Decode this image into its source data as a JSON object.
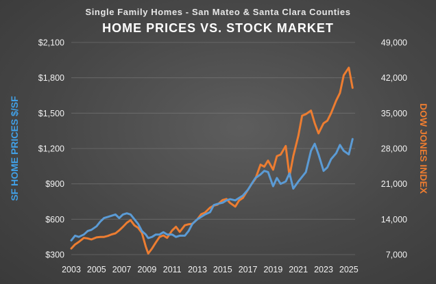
{
  "chart_data": {
    "type": "line",
    "subtitle": "Single Family Homes - San Mateo & Santa Clara  Counties",
    "title": "HOME PRICES VS. STOCK MARKET",
    "ylabel_left": "SF HOME PRICES $/SF",
    "ylabel_right": "DOW JONES INDEX",
    "xlim": [
      2003,
      2025.5
    ],
    "ylim_left": [
      300,
      2100
    ],
    "ylim_right": [
      7000,
      49000
    ],
    "grid": true,
    "x_ticks": [
      "2003",
      "2005",
      "2007",
      "2009",
      "2011",
      "2013",
      "2015",
      "2017",
      "2019",
      "2021",
      "2023",
      "2025"
    ],
    "y_ticks_left": [
      "$300",
      "$600",
      "$900",
      "$1,200",
      "$1,500",
      "$1,800",
      "$2,100"
    ],
    "y_ticks_right": [
      "7,000",
      "14,000",
      "21,000",
      "28,000",
      "35,000",
      "42,000",
      "49,000"
    ],
    "colors": {
      "left_series": "#5b9bd5",
      "right_series": "#ed7d31",
      "left_label": "#41a0e6",
      "right_label": "#ed7d31"
    },
    "series": [
      {
        "axis": "left",
        "x": [
          2003.0,
          2003.3,
          2003.6,
          2004.0,
          2004.3,
          2004.6,
          2005.0,
          2005.3,
          2005.6,
          2005.9,
          2006.2,
          2006.5,
          2006.8,
          2007.1,
          2007.4,
          2007.7,
          2008.0,
          2008.3,
          2008.6,
          2008.9,
          2009.1,
          2009.4,
          2009.7,
          2010.0,
          2010.3,
          2010.6,
          2011.0,
          2011.3,
          2011.6,
          2012.0,
          2012.3,
          2012.6,
          2013.0,
          2013.3,
          2013.6,
          2014.0,
          2014.3,
          2014.6,
          2015.0,
          2015.3,
          2015.6,
          2016.0,
          2016.3,
          2016.6,
          2017.0,
          2017.3,
          2017.6,
          2018.0,
          2018.3,
          2018.6,
          2019.0,
          2019.3,
          2019.6,
          2020.0,
          2020.3,
          2020.6,
          2021.0,
          2021.3,
          2021.6,
          2022.0,
          2022.3,
          2022.6,
          2023.0,
          2023.3,
          2023.6,
          2024.0,
          2024.3,
          2024.6,
          2025.0,
          2025.3
        ],
        "values": [
          420,
          460,
          450,
          470,
          500,
          510,
          540,
          580,
          610,
          620,
          630,
          640,
          610,
          640,
          650,
          640,
          600,
          560,
          500,
          470,
          440,
          450,
          470,
          470,
          490,
          470,
          470,
          450,
          460,
          460,
          500,
          560,
          600,
          620,
          640,
          660,
          720,
          730,
          740,
          760,
          770,
          760,
          780,
          800,
          850,
          900,
          950,
          980,
          1010,
          1000,
          880,
          950,
          900,
          920,
          990,
          860,
          920,
          960,
          1000,
          1180,
          1240,
          1150,
          1010,
          1040,
          1110,
          1160,
          1230,
          1180,
          1150,
          1280
        ]
      },
      {
        "axis": "right",
        "x": [
          2003.0,
          2003.3,
          2003.6,
          2004.0,
          2004.3,
          2004.6,
          2005.0,
          2005.3,
          2005.6,
          2005.9,
          2006.2,
          2006.5,
          2006.8,
          2007.1,
          2007.4,
          2007.7,
          2008.0,
          2008.3,
          2008.6,
          2008.9,
          2009.1,
          2009.4,
          2009.7,
          2010.0,
          2010.3,
          2010.6,
          2011.0,
          2011.3,
          2011.6,
          2012.0,
          2012.3,
          2012.6,
          2013.0,
          2013.3,
          2013.6,
          2014.0,
          2014.3,
          2014.6,
          2015.0,
          2015.3,
          2015.6,
          2016.0,
          2016.3,
          2016.6,
          2017.0,
          2017.3,
          2017.6,
          2018.0,
          2018.3,
          2018.6,
          2019.0,
          2019.3,
          2019.6,
          2020.0,
          2020.3,
          2020.6,
          2021.0,
          2021.3,
          2021.6,
          2022.0,
          2022.3,
          2022.6,
          2023.0,
          2023.3,
          2023.6,
          2024.0,
          2024.3,
          2024.6,
          2025.0,
          2025.3
        ],
        "values": [
          8200,
          9000,
          9500,
          10300,
          10200,
          10000,
          10400,
          10500,
          10500,
          10700,
          11000,
          11200,
          11800,
          12500,
          13300,
          13800,
          12800,
          12300,
          11300,
          8600,
          7200,
          8200,
          9400,
          10500,
          10800,
          10300,
          11800,
          12500,
          11500,
          12800,
          13000,
          13100,
          14000,
          15000,
          15300,
          16300,
          16700,
          16900,
          17800,
          18000,
          17200,
          16500,
          17700,
          18200,
          19800,
          21000,
          22000,
          24800,
          24400,
          25600,
          23800,
          26500,
          26800,
          28500,
          22500,
          26500,
          30500,
          34500,
          34800,
          35500,
          33000,
          31000,
          33000,
          33500,
          35000,
          37500,
          39000,
          42500,
          44000,
          40000
        ]
      }
    ]
  }
}
